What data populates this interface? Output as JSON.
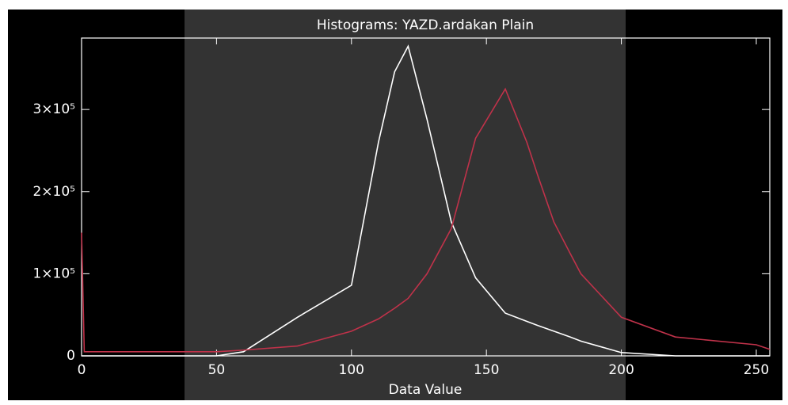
{
  "chart_data": {
    "type": "line",
    "title": "Histograms: YAZD.ardakan Plain",
    "x_label": "Data Value",
    "x": [
      0,
      1,
      50,
      60,
      80,
      100,
      110,
      116,
      121,
      128,
      137,
      146,
      157,
      165,
      169,
      175,
      181,
      185,
      200,
      220,
      250,
      255
    ],
    "series": [
      {
        "color": "#ffffff",
        "values": [
          0,
          0,
          0,
          5000,
          47000,
          86000,
          260000,
          346000,
          377000,
          288000,
          163000,
          95000,
          52000,
          42000,
          37000,
          30000,
          23000,
          18000,
          4000,
          0,
          0,
          0
        ]
      },
      {
        "color": "#c0324a",
        "values": [
          150000,
          5000,
          5000,
          7000,
          12000,
          30000,
          45000,
          58000,
          70000,
          100000,
          155000,
          265000,
          325000,
          260000,
          220000,
          163000,
          125000,
          100000,
          47000,
          23000,
          13500,
          8000
        ]
      }
    ],
    "xlim": [
      0,
      255
    ],
    "xticks": [
      0,
      50,
      100,
      150,
      200,
      250
    ],
    "ylim": [
      0,
      387000
    ],
    "yticks": [
      0,
      {
        "value": 100000,
        "label": "1×10⁵"
      },
      {
        "value": 200000,
        "label": "2×10⁵"
      },
      {
        "value": 300000,
        "label": "3×10⁵"
      }
    ]
  }
}
